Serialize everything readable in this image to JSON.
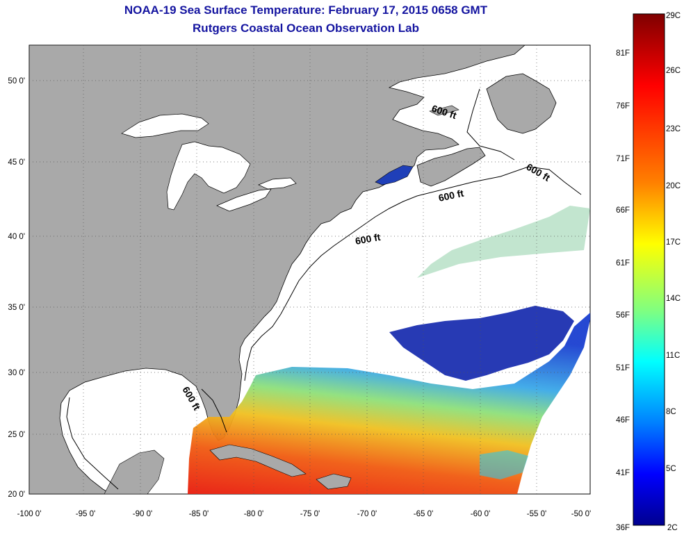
{
  "header": {
    "title": "NOAA-19 Sea Surface Temperature:  February 17, 2015 0658 GMT",
    "subtitle": "Rutgers Coastal Ocean Observation Lab"
  },
  "map": {
    "lon_ticks": [
      "-100 0'",
      "-95 0'",
      "-90 0'",
      "-85 0'",
      "-80 0'",
      "-75 0'",
      "-70 0'",
      "-65 0'",
      "-60 0'",
      "-55 0'",
      "-50 0'"
    ],
    "lat_ticks": [
      "20 0'",
      "25 0'",
      "30 0'",
      "35 0'",
      "40 0'",
      "45 0'",
      "50 0'"
    ],
    "isobath_label": "600 ft",
    "colors": {
      "land": "#a9a9a9",
      "water": "#ffffff",
      "grid": "#555555"
    }
  },
  "colorbar": {
    "celsius_labels": [
      "29C",
      "26C",
      "23C",
      "20C",
      "17C",
      "14C",
      "11C",
      "8C",
      "5C",
      "2C"
    ],
    "fahrenheit_labels": [
      "81F",
      "76F",
      "71F",
      "66F",
      "61F",
      "56F",
      "51F",
      "46F",
      "41F",
      "36F"
    ],
    "colors": [
      "#7f0000",
      "#ff0000",
      "#ff7f00",
      "#ffff00",
      "#7fff7f",
      "#00ffff",
      "#007fff",
      "#0000ff",
      "#00008f"
    ]
  }
}
